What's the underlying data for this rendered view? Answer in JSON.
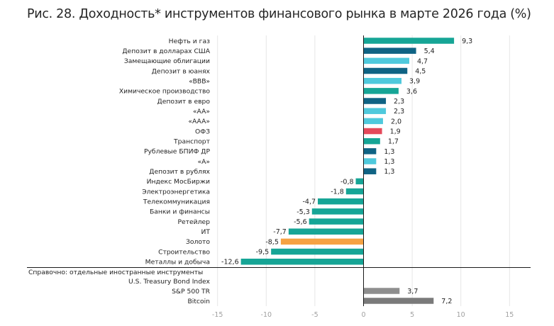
{
  "page": {
    "title": "Рис. 28. Доходность* инструментов финансового рынка в марте 2026 года (%)"
  },
  "colors": {
    "teal": "#16A596",
    "dark_blue": "#0F6384",
    "light_cyan": "#4FC9DC",
    "red": "#E5495A",
    "orange": "#F5A243",
    "gray": "#8E8E8E",
    "dark_gray": "#7A7A7A"
  },
  "chart_data": {
    "type": "bar",
    "orientation": "horizontal",
    "title": "Рис. 28. Доходность* инструментов финансового рынка в марте 2026 года (%)",
    "xlabel": "",
    "ylabel": "",
    "xlim": [
      -15,
      17
    ],
    "xticks": [
      -15,
      -10,
      -5,
      0,
      5,
      10,
      15
    ],
    "xtick_labels": [
      "-15",
      "-10",
      "-5",
      "0",
      "5",
      "10",
      "15"
    ],
    "grid": "vertical",
    "legend": "none",
    "categories": [
      {
        "label": "Нефть и газ",
        "value": 9.3,
        "value_label": "9,3",
        "color": "teal"
      },
      {
        "label": "Депозит в долларах США",
        "value": 5.4,
        "value_label": "5,4",
        "color": "dark_blue"
      },
      {
        "label": "Замещающие облигации",
        "value": 4.7,
        "value_label": "4,7",
        "color": "light_cyan"
      },
      {
        "label": "Депозит в юанях",
        "value": 4.5,
        "value_label": "4,5",
        "color": "dark_blue"
      },
      {
        "label": "«BBB»",
        "value": 3.9,
        "value_label": "3,9",
        "color": "light_cyan"
      },
      {
        "label": "Химическое производство",
        "value": 3.6,
        "value_label": "3,6",
        "color": "teal"
      },
      {
        "label": "Депозит в евро",
        "value": 2.3,
        "value_label": "2,3",
        "color": "dark_blue"
      },
      {
        "label": "«AA»",
        "value": 2.3,
        "value_label": "2,3",
        "color": "light_cyan"
      },
      {
        "label": "«AAA»",
        "value": 2.0,
        "value_label": "2,0",
        "color": "light_cyan"
      },
      {
        "label": "ОФЗ",
        "value": 1.9,
        "value_label": "1,9",
        "color": "red"
      },
      {
        "label": "Транспорт",
        "value": 1.7,
        "value_label": "1,7",
        "color": "teal"
      },
      {
        "label": "Рублевые БПИФ ДР",
        "value": 1.3,
        "value_label": "1,3",
        "color": "dark_blue"
      },
      {
        "label": "«A»",
        "value": 1.3,
        "value_label": "1,3",
        "color": "light_cyan"
      },
      {
        "label": "Депозит в рублях",
        "value": 1.3,
        "value_label": "1,3",
        "color": "dark_blue"
      },
      {
        "label": "Индекс МосБиржи",
        "value": -0.8,
        "value_label": "-0,8",
        "color": "teal"
      },
      {
        "label": "Электроэнергетика",
        "value": -1.8,
        "value_label": "-1,8",
        "color": "teal"
      },
      {
        "label": "Телекоммуникация",
        "value": -4.7,
        "value_label": "-4,7",
        "color": "teal"
      },
      {
        "label": "Банки и финансы",
        "value": -5.3,
        "value_label": "-5,3",
        "color": "teal"
      },
      {
        "label": "Ретейлер",
        "value": -5.6,
        "value_label": "-5,6",
        "color": "teal"
      },
      {
        "label": "ИТ",
        "value": -7.7,
        "value_label": "-7,7",
        "color": "teal"
      },
      {
        "label": "Золото",
        "value": -8.5,
        "value_label": "-8,5",
        "color": "orange"
      },
      {
        "label": "Строительство",
        "value": -9.5,
        "value_label": "-9,5",
        "color": "teal"
      },
      {
        "label": "Металлы и добыча",
        "value": -12.6,
        "value_label": "-12,6",
        "color": "teal"
      }
    ],
    "reference_section": {
      "header": "Справочно: отдельные иностранные инструменты",
      "items": [
        {
          "label": "U.S. Treasury Bond Index",
          "value": null,
          "value_label": ""
        },
        {
          "label": "S&P 500 TR",
          "value": 3.7,
          "value_label": "3,7",
          "color": "gray"
        },
        {
          "label": "Bitcoin",
          "value": 7.2,
          "value_label": "7,2",
          "color": "dark_gray"
        }
      ]
    }
  }
}
